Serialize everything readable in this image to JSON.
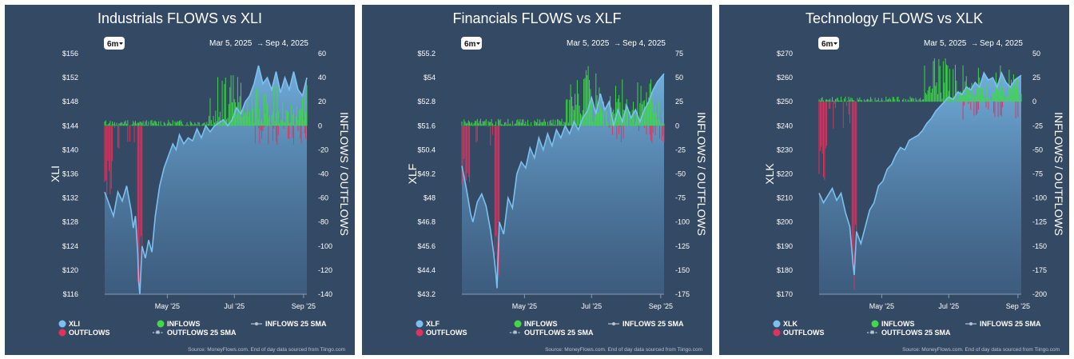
{
  "colors": {
    "panel_bg": "#344963",
    "price_line": "#7cc0f0",
    "inflow": "#3fd94a",
    "outflow": "#e0325f",
    "text": "#ffffff",
    "muted_text": "#b8c4d2"
  },
  "legend_labels": {
    "inflows": "INFLOWS",
    "outflows": "OUTFLOWS",
    "inflows_sma": "INFLOWS 25 SMA",
    "outflows_sma": "OUTFLOWS 25 SMA"
  },
  "range_button": "6m",
  "date_range": {
    "start": "Mar 5, 2025",
    "separator": "→",
    "end": "Sep 4, 2025"
  },
  "source_text": "Source: MoneyFlows.com. End of day data sourced from Tiingo.com",
  "chart_data": [
    {
      "type": "line",
      "title": "Industrials FLOWS vs XLI",
      "ticker": "XLI",
      "ylabel": "XLI",
      "y2label": "INFLOWS / OUTFLOWS",
      "x_ticks": [
        "May '25",
        "Jul '25",
        "Sep '25"
      ],
      "x_tick_days": [
        57,
        118,
        181
      ],
      "y_ticks": [
        "$156",
        "$152",
        "$148",
        "$144",
        "$140",
        "$136",
        "$132",
        "$128",
        "$124",
        "$120",
        "$116"
      ],
      "ylim": [
        116,
        156
      ],
      "y2_ticks": [
        "60",
        "40",
        "20",
        "0",
        "-20",
        "-40",
        "-60",
        "-80",
        "-100",
        "-120",
        "-140"
      ],
      "y2lim": [
        -140,
        60
      ],
      "series": [
        {
          "name": "XLI",
          "points": [
            [
              0,
              133
            ],
            [
              4,
              131
            ],
            [
              8,
              129
            ],
            [
              12,
              133
            ],
            [
              16,
              131.5
            ],
            [
              20,
              134
            ],
            [
              24,
              130
            ],
            [
              26,
              127
            ],
            [
              28,
              129
            ],
            [
              30,
              123
            ],
            [
              31,
              118
            ],
            [
              32,
              116
            ],
            [
              34,
              124
            ],
            [
              37,
              122
            ],
            [
              40,
              125
            ],
            [
              43,
              123
            ],
            [
              46,
              129
            ],
            [
              50,
              134
            ],
            [
              54,
              137
            ],
            [
              58,
              139
            ],
            [
              62,
              141
            ],
            [
              65,
              140
            ],
            [
              68,
              142.5
            ],
            [
              72,
              141
            ],
            [
              76,
              142
            ],
            [
              80,
              141.5
            ],
            [
              84,
              143.5
            ],
            [
              88,
              142
            ],
            [
              92,
              144
            ],
            [
              96,
              143
            ],
            [
              100,
              144
            ],
            [
              104,
              144.5
            ],
            [
              108,
              145
            ],
            [
              112,
              144
            ],
            [
              116,
              145
            ],
            [
              120,
              147
            ],
            [
              124,
              146
            ],
            [
              128,
              148
            ],
            [
              132,
              149
            ],
            [
              136,
              151
            ],
            [
              140,
              154
            ],
            [
              144,
              151
            ],
            [
              148,
              152
            ],
            [
              152,
              150
            ],
            [
              156,
              153
            ],
            [
              160,
              149.5
            ],
            [
              164,
              152
            ],
            [
              168,
              150
            ],
            [
              172,
              153
            ],
            [
              176,
              150
            ],
            [
              180,
              149
            ],
            [
              184,
              152
            ]
          ]
        },
        {
          "name": "INFLOWS",
          "max_value": 42
        },
        {
          "name": "OUTFLOWS",
          "max_value": -136
        }
      ]
    },
    {
      "type": "line",
      "title": "Financials FLOWS vs XLF",
      "ticker": "XLF",
      "ylabel": "XLF",
      "y2label": "INFLOWS / OUTFLOWS",
      "x_ticks": [
        "May '25",
        "Jul '25",
        "Sep '25"
      ],
      "x_tick_days": [
        57,
        118,
        181
      ],
      "y_ticks": [
        "$55.2",
        "$54",
        "$52.8",
        "$51.6",
        "$50.4",
        "$49.2",
        "$48",
        "$46.8",
        "$45.6",
        "$44.4",
        "$43.2"
      ],
      "ylim": [
        43.2,
        55.2
      ],
      "y2_ticks": [
        "75",
        "50",
        "25",
        "0",
        "-25",
        "-50",
        "-75",
        "-100",
        "-125",
        "-150",
        "-175"
      ],
      "y2lim": [
        -175,
        75
      ],
      "series": [
        {
          "name": "XLF",
          "points": [
            [
              0,
              49.6
            ],
            [
              4,
              48.5
            ],
            [
              8,
              47.2
            ],
            [
              10,
              46.8
            ],
            [
              14,
              47.8
            ],
            [
              18,
              48.2
            ],
            [
              22,
              47.6
            ],
            [
              26,
              46.4
            ],
            [
              29,
              45.2
            ],
            [
              31,
              44.2
            ],
            [
              32,
              43.5
            ],
            [
              34,
              46.8
            ],
            [
              38,
              46.2
            ],
            [
              42,
              48
            ],
            [
              46,
              47.5
            ],
            [
              50,
              49.2
            ],
            [
              54,
              49.8
            ],
            [
              58,
              49.5
            ],
            [
              62,
              50.5
            ],
            [
              66,
              50
            ],
            [
              70,
              51
            ],
            [
              74,
              50.4
            ],
            [
              78,
              51.2
            ],
            [
              82,
              50.6
            ],
            [
              86,
              51.4
            ],
            [
              90,
              51
            ],
            [
              94,
              51.6
            ],
            [
              98,
              51.2
            ],
            [
              102,
              51.8
            ],
            [
              106,
              51.4
            ],
            [
              110,
              52
            ],
            [
              114,
              52.3
            ],
            [
              118,
              53
            ],
            [
              122,
              52.2
            ],
            [
              126,
              53.2
            ],
            [
              130,
              52.4
            ],
            [
              134,
              52.8
            ],
            [
              138,
              51.6
            ],
            [
              142,
              52.4
            ],
            [
              146,
              51.8
            ],
            [
              150,
              52.6
            ],
            [
              154,
              52
            ],
            [
              158,
              52.4
            ],
            [
              162,
              51.8
            ],
            [
              166,
              52.4
            ],
            [
              170,
              52.8
            ],
            [
              174,
              53.4
            ],
            [
              178,
              53.8
            ],
            [
              184,
              54.2
            ]
          ]
        },
        {
          "name": "INFLOWS",
          "max_value": 62
        },
        {
          "name": "OUTFLOWS",
          "max_value": -168
        }
      ]
    },
    {
      "type": "line",
      "title": "Technology FLOWS vs XLK",
      "ticker": "XLK",
      "ylabel": "XLK",
      "y2label": "INFLOWS / OUTFLOWS",
      "x_ticks": [
        "May '25",
        "Jul '25",
        "Sep '25"
      ],
      "x_tick_days": [
        57,
        118,
        181
      ],
      "y_ticks": [
        "$270",
        "$260",
        "$250",
        "$240",
        "$230",
        "$220",
        "$210",
        "$200",
        "$190",
        "$180",
        "$170"
      ],
      "ylim": [
        170,
        270
      ],
      "y2_ticks": [
        "50",
        "25",
        "0",
        "-25",
        "-50",
        "-75",
        "-100",
        "-125",
        "-150",
        "-175",
        "-200"
      ],
      "y2lim": [
        -200,
        50
      ],
      "series": [
        {
          "name": "XLK",
          "points": [
            [
              0,
              212
            ],
            [
              4,
              208
            ],
            [
              8,
              211
            ],
            [
              12,
              214
            ],
            [
              16,
              209
            ],
            [
              20,
              212
            ],
            [
              24,
              204
            ],
            [
              28,
              198
            ],
            [
              31,
              182
            ],
            [
              32,
              178
            ],
            [
              34,
              196
            ],
            [
              38,
              191
            ],
            [
              42,
              198
            ],
            [
              46,
              205
            ],
            [
              50,
              208
            ],
            [
              54,
              215
            ],
            [
              58,
              217
            ],
            [
              62,
              222
            ],
            [
              66,
              224
            ],
            [
              70,
              228
            ],
            [
              74,
              231
            ],
            [
              78,
              230
            ],
            [
              82,
              234
            ],
            [
              86,
              235
            ],
            [
              90,
              236
            ],
            [
              94,
              238
            ],
            [
              98,
              241
            ],
            [
              102,
              243
            ],
            [
              106,
              246
            ],
            [
              110,
              248
            ],
            [
              114,
              250
            ],
            [
              118,
              252
            ],
            [
              122,
              251
            ],
            [
              126,
              254
            ],
            [
              130,
              253
            ],
            [
              134,
              256
            ],
            [
              138,
              255
            ],
            [
              142,
              258
            ],
            [
              146,
              256
            ],
            [
              150,
              262
            ],
            [
              154,
              259
            ],
            [
              158,
              260
            ],
            [
              162,
              256
            ],
            [
              166,
              262
            ],
            [
              170,
              258
            ],
            [
              174,
              256
            ],
            [
              178,
              259
            ],
            [
              184,
              261
            ]
          ]
        },
        {
          "name": "INFLOWS",
          "max_value": 45
        },
        {
          "name": "OUTFLOWS",
          "max_value": -195
        }
      ]
    }
  ]
}
